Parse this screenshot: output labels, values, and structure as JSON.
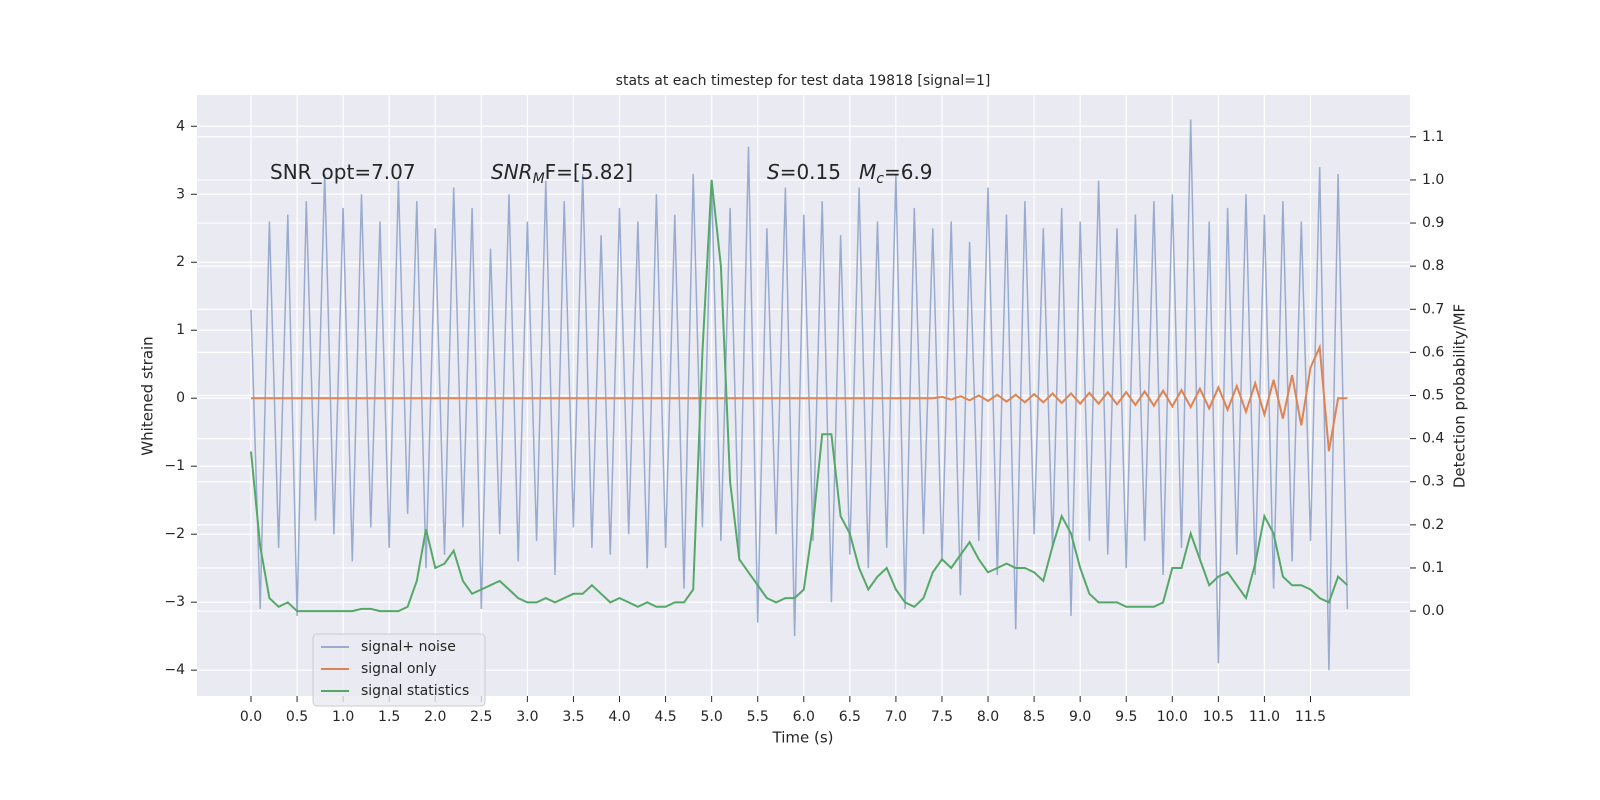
{
  "chart_data": {
    "type": "line",
    "title": "stats at each timestep for test data 19818 [signal=1]",
    "xlabel": "Time (s)",
    "ylabel": "Whitened strain",
    "y2label": "Detection probability/MF",
    "annotations": [
      {
        "text": "SNR_opt=7.07"
      },
      {
        "base": "SNR",
        "sub": "M",
        "rest": "F=[5.82]"
      },
      {
        "base": "S",
        "rest": "=0.15"
      },
      {
        "base": "M",
        "sub": "c",
        "rest": "=6.9"
      }
    ],
    "grid": true,
    "legend": "lower left",
    "xlim": [
      -0.586,
      12.58
    ],
    "ylim": [
      -4.38,
      4.46
    ],
    "y2lim": [
      -0.197,
      1.197
    ],
    "xticks": [
      {
        "value": 0,
        "label": "0.0"
      },
      {
        "value": 0.5,
        "label": "0.5"
      },
      {
        "value": 1,
        "label": "1.0"
      },
      {
        "value": 1.5,
        "label": "1.5"
      },
      {
        "value": 2,
        "label": "2.0"
      },
      {
        "value": 2.5,
        "label": "2.5"
      },
      {
        "value": 3,
        "label": "3.0"
      },
      {
        "value": 3.5,
        "label": "3.5"
      },
      {
        "value": 4,
        "label": "4.0"
      },
      {
        "value": 4.5,
        "label": "4.5"
      },
      {
        "value": 5,
        "label": "5.0"
      },
      {
        "value": 5.5,
        "label": "5.5"
      },
      {
        "value": 6,
        "label": "6.0"
      },
      {
        "value": 6.5,
        "label": "6.5"
      },
      {
        "value": 7,
        "label": "7.0"
      },
      {
        "value": 7.5,
        "label": "7.5"
      },
      {
        "value": 8,
        "label": "8.0"
      },
      {
        "value": 8.5,
        "label": "8.5"
      },
      {
        "value": 9,
        "label": "9.0"
      },
      {
        "value": 9.5,
        "label": "9.5"
      },
      {
        "value": 10,
        "label": "10.0"
      },
      {
        "value": 10.5,
        "label": "10.5"
      },
      {
        "value": 11,
        "label": "11.0"
      },
      {
        "value": 11.5,
        "label": "11.5"
      }
    ],
    "yticks": [
      {
        "value": -4,
        "label": "−4"
      },
      {
        "value": -3,
        "label": "−3"
      },
      {
        "value": -2,
        "label": "−2"
      },
      {
        "value": -1,
        "label": "−1"
      },
      0,
      1,
      2,
      3,
      4
    ],
    "y2ticks": [
      {
        "value": 0,
        "label": "0.0"
      },
      {
        "value": 0.1,
        "label": "0.1"
      },
      {
        "value": 0.2,
        "label": "0.2"
      },
      {
        "value": 0.3,
        "label": "0.3"
      },
      {
        "value": 0.4,
        "label": "0.4"
      },
      {
        "value": 0.5,
        "label": "0.5"
      },
      {
        "value": 0.6,
        "label": "0.6"
      },
      {
        "value": 0.7,
        "label": "0.7"
      },
      {
        "value": 0.8,
        "label": "0.8"
      },
      {
        "value": 0.9,
        "label": "0.9"
      },
      {
        "value": 1,
        "label": "1.0"
      },
      {
        "value": 1.1,
        "label": "1.1"
      }
    ],
    "x": [
      0,
      0.1,
      0.2,
      0.3,
      0.4,
      0.5,
      0.6,
      0.7,
      0.8,
      0.9,
      1,
      1.1,
      1.2,
      1.3,
      1.4,
      1.5,
      1.6,
      1.7,
      1.8,
      1.9,
      2,
      2.1,
      2.2,
      2.3,
      2.4,
      2.5,
      2.6,
      2.7,
      2.8,
      2.9,
      3,
      3.1,
      3.2,
      3.3,
      3.4,
      3.5,
      3.6,
      3.7,
      3.8,
      3.9,
      4,
      4.1,
      4.2,
      4.3,
      4.4,
      4.5,
      4.6,
      4.7,
      4.8,
      4.9,
      5,
      5.1,
      5.2,
      5.3,
      5.4,
      5.5,
      5.6,
      5.7,
      5.8,
      5.9,
      6,
      6.1,
      6.2,
      6.3,
      6.4,
      6.5,
      6.6,
      6.7,
      6.8,
      6.9,
      7,
      7.1,
      7.2,
      7.3,
      7.4,
      7.5,
      7.6,
      7.7,
      7.8,
      7.9,
      8,
      8.1,
      8.2,
      8.3,
      8.4,
      8.5,
      8.6,
      8.7,
      8.8,
      8.9,
      9,
      9.1,
      9.2,
      9.3,
      9.4,
      9.5,
      9.6,
      9.7,
      9.8,
      9.9,
      10,
      10.1,
      10.2,
      10.3,
      10.4,
      10.5,
      10.6,
      10.7,
      10.8,
      10.9,
      11,
      11.1,
      11.2,
      11.3,
      11.4,
      11.5,
      11.6,
      11.7,
      11.8,
      11.9
    ],
    "series": [
      {
        "name": "signal+ noise",
        "color": "#9aabd0",
        "values": [
          1.3,
          -3.1,
          2.6,
          -2.2,
          2.7,
          -3.2,
          2.9,
          -1.8,
          3.3,
          -2.0,
          2.8,
          -2.4,
          3.0,
          -1.9,
          2.6,
          -2.2,
          3.2,
          -1.7,
          2.9,
          -2.5,
          2.5,
          -2.3,
          3.1,
          -1.9,
          2.8,
          -3.1,
          2.2,
          -2.0,
          3.0,
          -2.4,
          2.6,
          -2.1,
          3.2,
          -2.6,
          2.9,
          -1.9,
          3.3,
          -2.2,
          2.4,
          -2.3,
          2.8,
          -2.0,
          2.6,
          -2.5,
          3.0,
          -2.2,
          2.7,
          -2.8,
          3.3,
          -1.9,
          3.2,
          -2.1,
          2.8,
          -2.4,
          3.7,
          -3.3,
          2.5,
          -2.0,
          3.1,
          -3.5,
          2.7,
          -2.1,
          2.9,
          -3.0,
          2.4,
          -2.3,
          3.1,
          -2.5,
          2.6,
          -2.2,
          3.3,
          -3.1,
          2.8,
          -2.0,
          2.5,
          -2.4,
          2.6,
          -2.9,
          2.3,
          -2.1,
          3.1,
          -2.6,
          2.7,
          -3.4,
          2.9,
          -2.0,
          2.5,
          -2.2,
          2.8,
          -3.2,
          2.6,
          -2.1,
          3.2,
          -2.3,
          2.5,
          -2.5,
          2.7,
          -2.1,
          2.9,
          -2.6,
          3.0,
          -2.2,
          4.1,
          -2.4,
          2.6,
          -3.9,
          2.8,
          -2.3,
          3.0,
          -2.6,
          2.7,
          -2.8,
          2.9,
          -2.4,
          2.6,
          -2.1,
          3.4,
          -4.0,
          3.3,
          -3.1
        ]
      },
      {
        "name": "signal only",
        "color": "#dd8452",
        "values": [
          0,
          0,
          0,
          0,
          0,
          0,
          0,
          0,
          0,
          0,
          0,
          0,
          0,
          0,
          0,
          0,
          0,
          0,
          0,
          0,
          0,
          0,
          0,
          0,
          0,
          0,
          0,
          0,
          0,
          0,
          0,
          0,
          0,
          0,
          0,
          0,
          0,
          0,
          0,
          0,
          0,
          0,
          0,
          0,
          0,
          0,
          0,
          0,
          0,
          0,
          0,
          0,
          0,
          0,
          0,
          0,
          0,
          0,
          0,
          0,
          0,
          0,
          0,
          0,
          0,
          0,
          0,
          0,
          0,
          0,
          0,
          0,
          0,
          0,
          0,
          0.02,
          -0.02,
          0.03,
          -0.03,
          0.04,
          -0.04,
          0.05,
          -0.05,
          0.05,
          -0.06,
          0.06,
          -0.06,
          0.07,
          -0.07,
          0.07,
          -0.08,
          0.08,
          -0.08,
          0.09,
          -0.09,
          0.09,
          -0.1,
          0.1,
          -0.11,
          0.11,
          -0.12,
          0.12,
          -0.13,
          0.14,
          -0.15,
          0.16,
          -0.17,
          0.18,
          -0.2,
          0.22,
          -0.24,
          0.27,
          -0.3,
          0.34,
          -0.4,
          0.45,
          0.75,
          -0.78,
          0,
          0
        ]
      },
      {
        "name": "signal statistics",
        "color": "#55a868",
        "axis": "y2",
        "values": [
          0.37,
          0.15,
          0.03,
          0.01,
          0.02,
          0,
          0,
          0,
          0,
          0,
          0,
          0,
          0.005,
          0.005,
          0,
          0,
          0,
          0.01,
          0.07,
          0.19,
          0.1,
          0.11,
          0.14,
          0.07,
          0.04,
          0.05,
          0.06,
          0.07,
          0.05,
          0.03,
          0.02,
          0.02,
          0.03,
          0.02,
          0.03,
          0.04,
          0.04,
          0.06,
          0.04,
          0.02,
          0.03,
          0.02,
          0.01,
          0.02,
          0.01,
          0.01,
          0.02,
          0.02,
          0.05,
          0.6,
          1.0,
          0.8,
          0.3,
          0.12,
          0.09,
          0.06,
          0.03,
          0.02,
          0.03,
          0.03,
          0.05,
          0.2,
          0.41,
          0.41,
          0.22,
          0.18,
          0.1,
          0.05,
          0.08,
          0.1,
          0.05,
          0.02,
          0.01,
          0.03,
          0.09,
          0.12,
          0.1,
          0.13,
          0.16,
          0.12,
          0.09,
          0.1,
          0.11,
          0.1,
          0.1,
          0.09,
          0.07,
          0.15,
          0.22,
          0.18,
          0.1,
          0.04,
          0.02,
          0.02,
          0.02,
          0.01,
          0.01,
          0.01,
          0.01,
          0.02,
          0.1,
          0.1,
          0.18,
          0.12,
          0.06,
          0.08,
          0.09,
          0.06,
          0.03,
          0.11,
          0.22,
          0.18,
          0.08,
          0.06,
          0.06,
          0.05,
          0.03,
          0.02,
          0.08,
          0.06
        ]
      }
    ]
  }
}
